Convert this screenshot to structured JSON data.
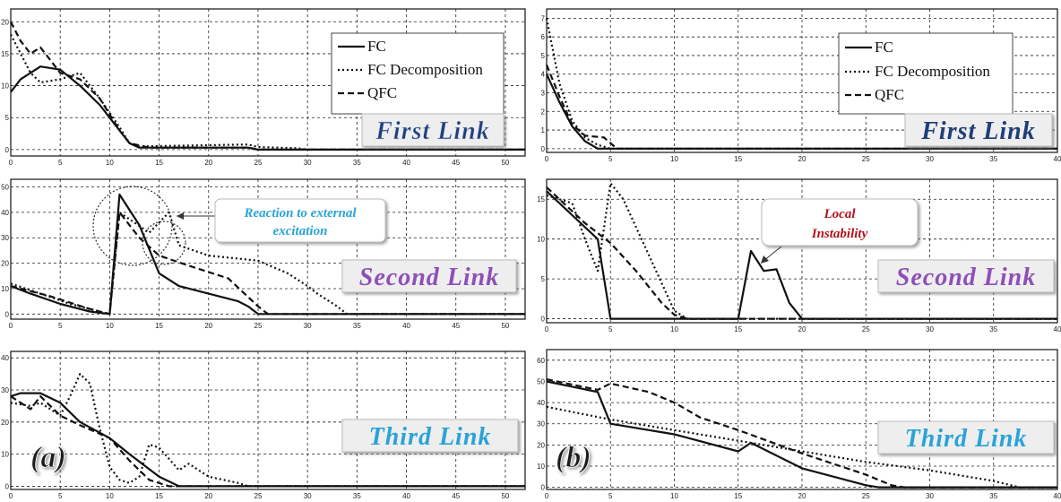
{
  "chart_data": [
    {
      "type": "line",
      "panel": "a",
      "label": "First Link",
      "xlim": [
        0,
        52
      ],
      "ylim": [
        -1,
        22
      ],
      "xticks": [
        0,
        5,
        10,
        15,
        20,
        25,
        30,
        35,
        40,
        45,
        50
      ],
      "yticks": [
        0,
        5,
        10,
        15,
        20
      ],
      "legend": [
        "FC",
        "FC Decomposition",
        "QFC"
      ],
      "series": [
        {
          "name": "FC",
          "points": [
            [
              0,
              9
            ],
            [
              1,
              11
            ],
            [
              3,
              13
            ],
            [
              5,
              12.5
            ],
            [
              7,
              10
            ],
            [
              9,
              7
            ],
            [
              11,
              3
            ],
            [
              12,
              1
            ],
            [
              13,
              0.3
            ],
            [
              24,
              0.3
            ],
            [
              25,
              0
            ],
            [
              52,
              0
            ]
          ]
        },
        {
          "name": "FC Decomposition",
          "points": [
            [
              0,
              18
            ],
            [
              2,
              12
            ],
            [
              3,
              10.5
            ],
            [
              5,
              11
            ],
            [
              7,
              12
            ],
            [
              9,
              8
            ],
            [
              11,
              3.5
            ],
            [
              12,
              1
            ],
            [
              13,
              0.5
            ],
            [
              24,
              0.8
            ],
            [
              25,
              0.4
            ],
            [
              29,
              0.2
            ],
            [
              30,
              0
            ],
            [
              52,
              0
            ]
          ]
        },
        {
          "name": "QFC",
          "points": [
            [
              0,
              20
            ],
            [
              1,
              17
            ],
            [
              2,
              15
            ],
            [
              3,
              16
            ],
            [
              5,
              12
            ],
            [
              7,
              11
            ],
            [
              9,
              8
            ],
            [
              11,
              3
            ],
            [
              12,
              1
            ],
            [
              14,
              0.3
            ],
            [
              24,
              0.3
            ],
            [
              25,
              0
            ],
            [
              52,
              0
            ]
          ]
        }
      ]
    },
    {
      "type": "line",
      "panel": "a",
      "label": "Second Link",
      "xlim": [
        0,
        52
      ],
      "ylim": [
        -2,
        53
      ],
      "xticks": [
        0,
        5,
        10,
        15,
        20,
        25,
        30,
        35,
        40,
        45,
        50
      ],
      "yticks": [
        0,
        10,
        20,
        30,
        40,
        50
      ],
      "annotation": "Reaction to external excitation",
      "series": [
        {
          "name": "FC",
          "points": [
            [
              0,
              11
            ],
            [
              2,
              8
            ],
            [
              5,
              4
            ],
            [
              8,
              1
            ],
            [
              10,
              0
            ],
            [
              11,
              47
            ],
            [
              13,
              35
            ],
            [
              15,
              16
            ],
            [
              17,
              11
            ],
            [
              20,
              8
            ],
            [
              23,
              5
            ],
            [
              24,
              3
            ],
            [
              25,
              0
            ],
            [
              52,
              0
            ]
          ]
        },
        {
          "name": "FC Decomposition",
          "points": [
            [
              0,
              12
            ],
            [
              3,
              8
            ],
            [
              6,
              4
            ],
            [
              10,
              0
            ],
            [
              11,
              40
            ],
            [
              14,
              32
            ],
            [
              16,
              40
            ],
            [
              17,
              27
            ],
            [
              20,
              23
            ],
            [
              25,
              21
            ],
            [
              28,
              16
            ],
            [
              30,
              11
            ],
            [
              31,
              8
            ],
            [
              33,
              3
            ],
            [
              34,
              0
            ],
            [
              52,
              0
            ]
          ]
        },
        {
          "name": "QFC",
          "points": [
            [
              0,
              11
            ],
            [
              4,
              7
            ],
            [
              8,
              2
            ],
            [
              10,
              0
            ],
            [
              11,
              40
            ],
            [
              13,
              30
            ],
            [
              15,
              23
            ],
            [
              18,
              19
            ],
            [
              22,
              14
            ],
            [
              25,
              3
            ],
            [
              26,
              0
            ],
            [
              52,
              0
            ]
          ]
        }
      ]
    },
    {
      "type": "line",
      "panel": "a",
      "label": "Third Link",
      "xlim": [
        0,
        52
      ],
      "ylim": [
        -1,
        42
      ],
      "xticks": [
        0,
        5,
        10,
        15,
        20,
        25,
        30,
        35,
        40,
        45,
        50
      ],
      "yticks": [
        0,
        10,
        20,
        30,
        40
      ],
      "series": [
        {
          "name": "FC",
          "points": [
            [
              0,
              28
            ],
            [
              1,
              29
            ],
            [
              3,
              29
            ],
            [
              5,
              26
            ],
            [
              7,
              20
            ],
            [
              10,
              15
            ],
            [
              12,
              10
            ],
            [
              15,
              3
            ],
            [
              17,
              0
            ],
            [
              52,
              0
            ]
          ]
        },
        {
          "name": "FC Decomposition",
          "points": [
            [
              0,
              26
            ],
            [
              2,
              25
            ],
            [
              3,
              26
            ],
            [
              5,
              22
            ],
            [
              6,
              28
            ],
            [
              7,
              35
            ],
            [
              8,
              32
            ],
            [
              9,
              18
            ],
            [
              10,
              6
            ],
            [
              11,
              2
            ],
            [
              12,
              1
            ],
            [
              13,
              3
            ],
            [
              14,
              13
            ],
            [
              15,
              12
            ],
            [
              17,
              5
            ],
            [
              18,
              7
            ],
            [
              20,
              3
            ],
            [
              23,
              1
            ],
            [
              24,
              0
            ],
            [
              52,
              0
            ]
          ]
        },
        {
          "name": "QFC",
          "points": [
            [
              0,
              28
            ],
            [
              2,
              24
            ],
            [
              3,
              28
            ],
            [
              5,
              22
            ],
            [
              7,
              19
            ],
            [
              10,
              15
            ],
            [
              12,
              8
            ],
            [
              14,
              2
            ],
            [
              16,
              0
            ],
            [
              52,
              0
            ]
          ]
        }
      ]
    },
    {
      "type": "line",
      "panel": "b",
      "label": "First Link",
      "xlim": [
        0,
        40
      ],
      "ylim": [
        -0.2,
        7.5
      ],
      "xticks": [
        0,
        5,
        10,
        15,
        20,
        25,
        30,
        35,
        40
      ],
      "yticks": [
        0,
        1,
        2,
        3,
        4,
        5,
        6,
        7
      ],
      "legend": [
        "FC",
        "FC Decomposition",
        "QFC"
      ],
      "series": [
        {
          "name": "FC",
          "points": [
            [
              0,
              4
            ],
            [
              1,
              2.5
            ],
            [
              2,
              1.2
            ],
            [
              3,
              0.4
            ],
            [
              4,
              0
            ],
            [
              40,
              0
            ]
          ]
        },
        {
          "name": "FC Decomposition",
          "points": [
            [
              0,
              7
            ],
            [
              1,
              3.5
            ],
            [
              2,
              1.5
            ],
            [
              3,
              0.6
            ],
            [
              4,
              0.2
            ],
            [
              5,
              0
            ],
            [
              40,
              0
            ]
          ]
        },
        {
          "name": "QFC",
          "points": [
            [
              0,
              4.5
            ],
            [
              1,
              2.8
            ],
            [
              2,
              1.3
            ],
            [
              3,
              0.7
            ],
            [
              4.5,
              0.6
            ],
            [
              5.5,
              0
            ],
            [
              40,
              0
            ]
          ]
        }
      ]
    },
    {
      "type": "line",
      "panel": "b",
      "label": "Second Link",
      "xlim": [
        0,
        40
      ],
      "ylim": [
        -0.5,
        17.5
      ],
      "xticks": [
        0,
        5,
        10,
        15,
        20,
        25,
        30,
        35,
        40
      ],
      "yticks": [
        0,
        5,
        10,
        15
      ],
      "annotation": "Local Instability",
      "series": [
        {
          "name": "FC",
          "points": [
            [
              0,
              16
            ],
            [
              2,
              13
            ],
            [
              4,
              10
            ],
            [
              5,
              0
            ],
            [
              15,
              0
            ],
            [
              16,
              8.5
            ],
            [
              17,
              6
            ],
            [
              18,
              6.2
            ],
            [
              19,
              2
            ],
            [
              20,
              0
            ],
            [
              40,
              0
            ]
          ]
        },
        {
          "name": "FC Decomposition",
          "points": [
            [
              0,
              15.5
            ],
            [
              2,
              14.5
            ],
            [
              3,
              10
            ],
            [
              4,
              6
            ],
            [
              5,
              17
            ],
            [
              6,
              15
            ],
            [
              8,
              8
            ],
            [
              10,
              1
            ],
            [
              11,
              0
            ],
            [
              40,
              0
            ]
          ]
        },
        {
          "name": "QFC",
          "points": [
            [
              0,
              16.5
            ],
            [
              3,
              12
            ],
            [
              5,
              9.5
            ],
            [
              7,
              6
            ],
            [
              9,
              2
            ],
            [
              10,
              0.5
            ],
            [
              11,
              0
            ],
            [
              40,
              0
            ]
          ]
        }
      ]
    },
    {
      "type": "line",
      "panel": "b",
      "label": "Third Link",
      "xlim": [
        0,
        40
      ],
      "ylim": [
        -1,
        65
      ],
      "xticks": [
        0,
        5,
        10,
        15,
        20,
        25,
        30,
        35,
        40
      ],
      "yticks": [
        0,
        10,
        20,
        30,
        40,
        50,
        60
      ],
      "series": [
        {
          "name": "FC",
          "points": [
            [
              0,
              50
            ],
            [
              4,
              45
            ],
            [
              5,
              30
            ],
            [
              10,
              25
            ],
            [
              15,
              17
            ],
            [
              16,
              21
            ],
            [
              20,
              9
            ],
            [
              25,
              1
            ],
            [
              26,
              0
            ],
            [
              40,
              0
            ]
          ]
        },
        {
          "name": "FC Decomposition",
          "points": [
            [
              0,
              38
            ],
            [
              5,
              32
            ],
            [
              10,
              27
            ],
            [
              15,
              22
            ],
            [
              20,
              17
            ],
            [
              25,
              12
            ],
            [
              30,
              8
            ],
            [
              35,
              3
            ],
            [
              37,
              0
            ],
            [
              40,
              0
            ]
          ]
        },
        {
          "name": "QFC",
          "points": [
            [
              0,
              51
            ],
            [
              4,
              46
            ],
            [
              5,
              49
            ],
            [
              8,
              45
            ],
            [
              10,
              40
            ],
            [
              12,
              33
            ],
            [
              15,
              27
            ],
            [
              20,
              16
            ],
            [
              25,
              6
            ],
            [
              27,
              1
            ],
            [
              28,
              0
            ],
            [
              40,
              0
            ]
          ]
        }
      ]
    }
  ],
  "labels": {
    "panel_a": "(a)",
    "panel_b": "(b)",
    "link1": "First Link",
    "link2": "Second Link",
    "link3": "Third Link",
    "legend_fc": "FC",
    "legend_fcd": "FC Decomposition",
    "legend_qfc": "QFC",
    "annot_a_line1": "Reaction to external",
    "annot_a_line2": "excitation",
    "annot_b_line1": "Local",
    "annot_b_line2": "Instability"
  },
  "colors": {
    "link_first": "#1f3f7a",
    "link_second": "#8e4fb8",
    "link_third": "#2aa3d8",
    "annot_a": "#2aa3d8",
    "annot_b": "#b3121b"
  },
  "styles": {
    "FC": "solid",
    "FC Decomposition": "dotted",
    "QFC": "dashed"
  }
}
